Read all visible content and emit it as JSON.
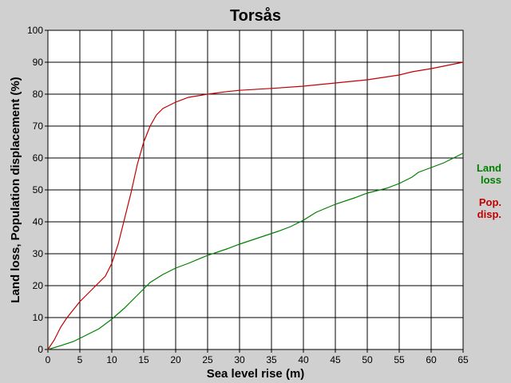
{
  "chart_data": {
    "type": "line",
    "title": "Torsås",
    "xlabel": "Sea level rise (m)",
    "ylabel": "Land loss, Population displacement (%)",
    "xlim": [
      0,
      65
    ],
    "ylim": [
      0,
      100
    ],
    "xticks": [
      0,
      5,
      10,
      15,
      20,
      25,
      30,
      35,
      40,
      45,
      50,
      55,
      60,
      65
    ],
    "yticks": [
      0,
      10,
      20,
      30,
      40,
      50,
      60,
      70,
      80,
      90,
      100
    ],
    "grid": true,
    "legend_placement": "right",
    "series": [
      {
        "name": "Land loss",
        "legend_lines": [
          "Land",
          "loss"
        ],
        "color": "#008000",
        "x": [
          0,
          2,
          4,
          6,
          8,
          10,
          12,
          14,
          15,
          16,
          18,
          20,
          22,
          25,
          28,
          30,
          33,
          36,
          38,
          40,
          42,
          45,
          48,
          50,
          53,
          55,
          57,
          58,
          60,
          62,
          65
        ],
        "y": [
          0,
          1.2,
          2.5,
          4.5,
          6.5,
          9.5,
          13,
          17,
          19,
          21,
          23.5,
          25.5,
          27,
          29.5,
          31.5,
          33,
          35,
          37,
          38.5,
          40.5,
          43,
          45.5,
          47.5,
          49,
          50.5,
          52,
          54,
          55.5,
          57,
          58.5,
          61.5
        ]
      },
      {
        "name": "Pop. disp.",
        "legend_lines": [
          "Pop.",
          "disp."
        ],
        "color": "#c00000",
        "x": [
          0,
          1,
          2,
          3,
          5,
          7,
          9,
          10,
          11,
          12,
          13,
          14,
          15,
          16,
          17,
          18,
          20,
          22,
          25,
          28,
          30,
          35,
          40,
          45,
          50,
          55,
          57,
          60,
          65
        ],
        "y": [
          0,
          3,
          7,
          10,
          15,
          19,
          23,
          27,
          33,
          41,
          49,
          58,
          65,
          70,
          73.5,
          75.5,
          77.5,
          79,
          80,
          80.8,
          81.2,
          81.8,
          82.5,
          83.5,
          84.5,
          86,
          87,
          88,
          90
        ]
      }
    ]
  }
}
